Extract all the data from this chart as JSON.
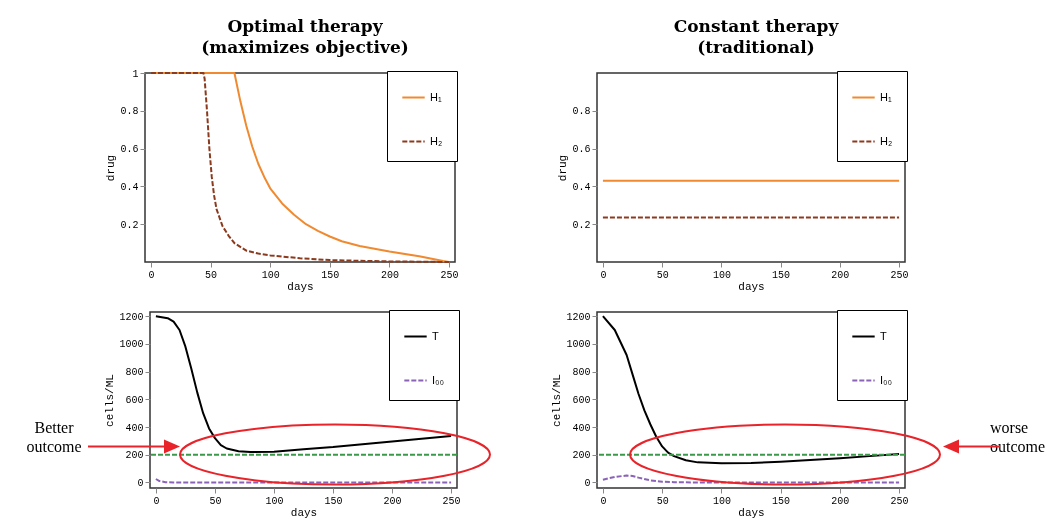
{
  "chart_data": [
    {
      "type": "line",
      "title": "Optimal therapy (maximizes objective)",
      "xlabel": "days",
      "ylabel": "drug",
      "xlim": [
        -5,
        255
      ],
      "xticks": [
        0,
        50,
        100,
        150,
        200,
        250
      ],
      "ylim": [
        0,
        1
      ],
      "yticks": [
        0.2,
        0.4,
        0.6,
        0.8,
        1
      ],
      "legend": "top right",
      "marker": "none",
      "series": [
        {
          "name": "H₁",
          "color": "#f08a30",
          "line_style": "solid",
          "x": [
            0,
            70,
            75,
            80,
            85,
            90,
            95,
            100,
            110,
            120,
            130,
            140,
            150,
            160,
            175,
            200,
            225,
            245,
            250
          ],
          "values": [
            1,
            1,
            0.85,
            0.72,
            0.61,
            0.52,
            0.45,
            0.39,
            0.31,
            0.25,
            0.2,
            0.165,
            0.135,
            0.11,
            0.085,
            0.055,
            0.03,
            0.005,
            0
          ]
        },
        {
          "name": "H₂",
          "color": "#8b3a1e",
          "line_style": "dashed",
          "x": [
            0,
            44,
            45,
            47,
            49,
            51,
            53,
            55,
            60,
            65,
            70,
            80,
            90,
            100,
            125,
            150,
            200,
            250
          ],
          "values": [
            1,
            1,
            0.97,
            0.8,
            0.6,
            0.45,
            0.35,
            0.28,
            0.19,
            0.14,
            0.1,
            0.06,
            0.045,
            0.035,
            0.02,
            0.01,
            0.003,
            0
          ]
        }
      ]
    },
    {
      "type": "line",
      "title": "Constant therapy (traditional)",
      "xlabel": "days",
      "ylabel": "drug",
      "xlim": [
        -5,
        255
      ],
      "xticks": [
        0,
        50,
        100,
        150,
        200,
        250
      ],
      "ylim": [
        0,
        1
      ],
      "yticks": [
        0.2,
        0.4,
        0.6,
        0.8
      ],
      "legend": "top right",
      "marker": "none",
      "series": [
        {
          "name": "H₁",
          "color": "#f08a30",
          "line_style": "solid",
          "x": [
            0,
            250
          ],
          "values": [
            0.43,
            0.43
          ]
        },
        {
          "name": "H₂",
          "color": "#8b3a1e",
          "line_style": "dashed",
          "x": [
            0,
            250
          ],
          "values": [
            0.235,
            0.235
          ]
        }
      ]
    },
    {
      "type": "line",
      "xlabel": "days",
      "ylabel": "cells/ML",
      "xlim": [
        -5,
        255
      ],
      "xticks": [
        0,
        50,
        100,
        150,
        200,
        250
      ],
      "ylim": [
        -40,
        1230
      ],
      "yticks": [
        0,
        200,
        400,
        600,
        800,
        1000,
        1200
      ],
      "legend": "top right",
      "marker": "none",
      "annotations": [
        "Better outcome"
      ],
      "ref_lines": [
        {
          "axis": "y",
          "value": 200,
          "color": "#3a9a4a",
          "line_style": "dashed"
        }
      ],
      "series": [
        {
          "name": "T",
          "color": "#000000",
          "line_style": "solid",
          "x": [
            0,
            10,
            15,
            20,
            25,
            30,
            35,
            40,
            45,
            50,
            55,
            60,
            70,
            80,
            100,
            125,
            150,
            175,
            200,
            225,
            250
          ],
          "values": [
            1200,
            1185,
            1160,
            1100,
            980,
            820,
            650,
            500,
            390,
            320,
            270,
            245,
            225,
            220,
            222,
            240,
            255,
            275,
            295,
            315,
            335
          ]
        },
        {
          "name": "I₀₀",
          "color": "#8a63b8",
          "line_style": "dashed",
          "x": [
            0,
            3,
            8,
            15,
            250
          ],
          "values": [
            25,
            10,
            2,
            0,
            0
          ]
        }
      ]
    },
    {
      "type": "line",
      "xlabel": "days",
      "ylabel": "cells/ML",
      "xlim": [
        -5,
        255
      ],
      "xticks": [
        0,
        50,
        100,
        150,
        200,
        250
      ],
      "ylim": [
        -40,
        1230
      ],
      "yticks": [
        0,
        200,
        400,
        600,
        800,
        1000,
        1200
      ],
      "legend": "top right",
      "marker": "none",
      "annotations": [
        "worse outcome"
      ],
      "ref_lines": [
        {
          "axis": "y",
          "value": 200,
          "color": "#3a9a4a",
          "line_style": "dashed"
        }
      ],
      "series": [
        {
          "name": "T",
          "color": "#000000",
          "line_style": "solid",
          "x": [
            0,
            10,
            20,
            25,
            30,
            35,
            40,
            45,
            50,
            55,
            60,
            70,
            80,
            100,
            125,
            150,
            175,
            200,
            225,
            250
          ],
          "values": [
            1200,
            1100,
            920,
            780,
            640,
            520,
            420,
            330,
            260,
            215,
            190,
            160,
            145,
            138,
            140,
            150,
            162,
            175,
            190,
            205
          ]
        },
        {
          "name": "I₀₀",
          "color": "#8a63b8",
          "line_style": "dashed",
          "x": [
            0,
            10,
            20,
            25,
            30,
            40,
            50,
            60,
            80,
            250
          ],
          "values": [
            20,
            40,
            50,
            47,
            35,
            15,
            5,
            2,
            0,
            0
          ]
        }
      ]
    }
  ]
}
